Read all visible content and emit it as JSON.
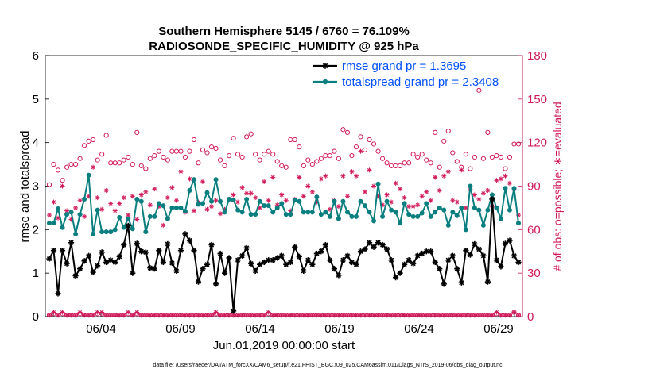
{
  "chart_data": {
    "type": "line",
    "title_line1": "Southern Hemisphere 5145 / 6760 = 76.109%",
    "title_line2": "RADIOSONDE_SPECIFIC_HUMIDITY @ 925 hPa",
    "xlabel": "Jun.01,2019 00:00:00 start",
    "ylabel_left": "rmse and totalspread",
    "ylabel_right": "# of obs: o=possible; ∗=evaluated",
    "footer": "data file: /Users/raeder/DAI/ATM_forcXX/CAM6_setup/f.e21.FHIST_BGC.f09_025.CAM6assim.011/Diags_NTrS_2019-06/obs_diag_output.nc",
    "xlim": [
      0.5,
      30.5
    ],
    "ylim_left": [
      0,
      6
    ],
    "ylim_right": [
      0,
      180
    ],
    "yticks_left": [
      "0",
      "1",
      "2",
      "3",
      "4",
      "5",
      "6"
    ],
    "yticks_right": [
      "0",
      "30",
      "60",
      "90",
      "120",
      "150",
      "180"
    ],
    "xticks": [
      {
        "x": 4,
        "label": "06/04"
      },
      {
        "x": 9,
        "label": "06/09"
      },
      {
        "x": 14,
        "label": "06/14"
      },
      {
        "x": 19,
        "label": "06/19"
      },
      {
        "x": 24,
        "label": "06/24"
      },
      {
        "x": 29,
        "label": "06/29"
      }
    ],
    "colors": {
      "rmse": "#000000",
      "spread": "#0b7f7f",
      "obs": "#d11a5a",
      "legend_text": "#0050ff"
    },
    "series": [
      {
        "name": "rmse grand pr = 1.3695",
        "key": "rmse",
        "values": [
          1.33,
          1.52,
          0.53,
          1.52,
          1.22,
          1.7,
          0.94,
          1.1,
          1.28,
          1.4,
          1.02,
          1.17,
          1.48,
          1.25,
          1.3,
          1.25,
          1.38,
          1.65,
          2.09,
          1.0,
          1.68,
          1.5,
          1.48,
          1.12,
          1.1,
          1.52,
          1.25,
          1.67,
          1.23,
          1.05,
          1.52,
          1.9,
          1.75,
          1.52,
          0.8,
          1.1,
          1.2,
          1.65,
          0.75,
          1.45,
          1.0,
          1.35,
          0.13,
          1.3,
          1.4,
          1.58,
          1.22,
          1.05,
          1.2,
          1.25,
          1.3,
          1.3,
          1.35,
          1.4,
          1.2,
          1.25,
          1.6,
          1.38,
          1.05,
          1.3,
          1.2,
          1.45,
          1.5,
          1.65,
          1.3,
          1.1,
          0.95,
          1.3,
          1.4,
          1.25,
          1.2,
          1.5,
          1.55,
          1.7,
          1.6,
          1.7,
          1.65,
          1.55,
          1.3,
          0.9,
          1.0,
          1.2,
          1.3,
          1.22,
          1.4,
          1.45,
          1.5,
          1.5,
          1.25,
          1.1,
          0.75,
          1.3,
          1.4,
          1.1,
          0.78,
          1.52,
          1.42,
          1.67,
          1.55,
          1.4,
          0.8,
          2.7,
          1.3,
          1.15,
          1.68,
          1.75,
          1.4,
          1.25
        ]
      },
      {
        "name": "totalspread grand pr = 2.3408",
        "key": "spread",
        "values": [
          2.15,
          2.15,
          2.48,
          2.05,
          2.35,
          2.4,
          1.9,
          2.35,
          2.7,
          3.25,
          1.9,
          2.45,
          1.95,
          1.95,
          1.95,
          2.0,
          2.28,
          2.05,
          2.25,
          2.02,
          2.7,
          2.65,
          1.95,
          2.3,
          2.3,
          2.6,
          2.55,
          2.25,
          2.5,
          2.5,
          2.5,
          2.42,
          2.9,
          3.15,
          2.58,
          2.6,
          2.85,
          2.65,
          3.15,
          2.65,
          2.4,
          2.7,
          2.68,
          2.45,
          2.4,
          2.7,
          2.35,
          2.35,
          2.65,
          2.55,
          2.55,
          2.4,
          2.5,
          2.6,
          2.35,
          2.35,
          2.68,
          2.65,
          2.4,
          2.4,
          2.4,
          2.75,
          2.35,
          2.4,
          2.3,
          2.65,
          2.25,
          2.65,
          2.4,
          2.3,
          2.3,
          2.65,
          2.55,
          2.4,
          2.2,
          3.05,
          2.3,
          2.65,
          2.45,
          2.4,
          2.15,
          2.6,
          2.35,
          2.3,
          2.3,
          2.38,
          2.6,
          2.3,
          2.4,
          2.5,
          2.45,
          2.1,
          2.4,
          2.32,
          2.5,
          2.0,
          3.0,
          2.5,
          2.45,
          2.1,
          2.45,
          2.8,
          2.5,
          2.25,
          2.95,
          2.45,
          2.95,
          2.15
        ]
      },
      {
        "name": "possible obs",
        "key": "possible",
        "axis": "right",
        "values": [
          91,
          105,
          101,
          94,
          103,
          105,
          105,
          109,
          118,
          121,
          122,
          108,
          112,
          125,
          106,
          106,
          106,
          108,
          110,
          105,
          127,
          104,
          102,
          109,
          111,
          114,
          110,
          108,
          114,
          114,
          114,
          110,
          114,
          122,
          106,
          115,
          113,
          117,
          116,
          108,
          104,
          111,
          123,
          112,
          110,
          124,
          126,
          112,
          108,
          112,
          114,
          112,
          107,
          104,
          103,
          122,
          122,
          117,
          104,
          108,
          105,
          107,
          109,
          111,
          111,
          114,
          109,
          129,
          127,
          111,
          117,
          124,
          115,
          122,
          119,
          114,
          109,
          106,
          104,
          104,
          104,
          106,
          106,
          112,
          110,
          112,
          108,
          106,
          127,
          103,
          121,
          128,
          113,
          107,
          103,
          112,
          102,
          110,
          156,
          109,
          127,
          110,
          111,
          110,
          102,
          110,
          119,
          119
        ]
      },
      {
        "name": "evaluated obs",
        "key": "evaluated",
        "axis": "right",
        "values": [
          70,
          79,
          68,
          90,
          73,
          67,
          75,
          80,
          69,
          83,
          103,
          82,
          74,
          87,
          78,
          73,
          78,
          82,
          70,
          83,
          67,
          84,
          86,
          77,
          88,
          76,
          63,
          82,
          89,
          80,
          100,
          72,
          95,
          73,
          79,
          93,
          74,
          76,
          80,
          71,
          74,
          81,
          84,
          79,
          89,
          85,
          85,
          82,
          75,
          93,
          80,
          96,
          77,
          84,
          80,
          73,
          81,
          96,
          83,
          90,
          86,
          79,
          95,
          97,
          74,
          80,
          76,
          97,
          83,
          100,
          97,
          114,
          86,
          101,
          90,
          83,
          77,
          84,
          79,
          92,
          88,
          82,
          76,
          76,
          77,
          83,
          86,
          80,
          96,
          87,
          97,
          100,
          80,
          79,
          101,
          75,
          88,
          84,
          81,
          85,
          87,
          76,
          94,
          95,
          97,
          92,
          88,
          70
        ]
      },
      {
        "name": "possible obs (near zero)",
        "key": "possible_low",
        "axis": "right",
        "values": [
          1,
          2,
          1,
          2,
          1,
          1,
          1,
          2,
          1,
          1,
          1,
          2,
          2,
          1,
          1,
          1,
          1,
          1,
          2,
          1,
          2,
          1,
          1,
          1,
          1,
          1,
          1,
          1,
          1,
          1,
          1,
          1,
          1,
          1,
          1,
          1,
          1,
          1,
          2,
          1,
          1,
          1,
          1,
          1,
          1,
          1,
          1,
          1,
          1,
          1,
          2,
          1,
          1,
          1,
          1,
          1,
          1,
          1,
          1,
          1,
          1,
          1,
          1,
          1,
          1,
          1,
          1,
          1,
          1,
          1,
          1,
          1,
          1,
          1,
          1,
          1,
          1,
          1,
          1,
          1,
          1,
          1,
          1,
          1,
          1,
          1,
          1,
          1,
          1,
          1,
          1,
          1,
          1,
          1,
          1,
          1,
          1,
          1,
          1,
          1,
          1,
          1,
          2,
          1,
          1,
          1,
          3,
          1
        ]
      },
      {
        "name": "evaluated obs (near zero)",
        "key": "evaluated_low",
        "axis": "right",
        "values": [
          1,
          3,
          1,
          3,
          1,
          1,
          1,
          3,
          1,
          1,
          1,
          3,
          3,
          1,
          1,
          1,
          1,
          1,
          3,
          1,
          3,
          1,
          1,
          1,
          1,
          1,
          1,
          1,
          1,
          1,
          1,
          1,
          1,
          1,
          1,
          1,
          1,
          1,
          3,
          1,
          1,
          1,
          1,
          1,
          1,
          1,
          1,
          1,
          1,
          1,
          3,
          1,
          1,
          1,
          1,
          1,
          1,
          1,
          1,
          1,
          1,
          1,
          1,
          1,
          1,
          1,
          1,
          1,
          1,
          1,
          1,
          1,
          1,
          1,
          1,
          1,
          1,
          1,
          1,
          1,
          1,
          1,
          1,
          1,
          1,
          1,
          1,
          1,
          1,
          1,
          1,
          1,
          1,
          1,
          1,
          1,
          1,
          1,
          1,
          1,
          1,
          1,
          3,
          1,
          1,
          1,
          3,
          1
        ]
      }
    ],
    "legend": [
      {
        "key": "rmse",
        "label": "rmse grand pr = 1.3695"
      },
      {
        "key": "spread",
        "label": "totalspread grand pr = 2.3408"
      }
    ],
    "legend_position": "top-right"
  }
}
